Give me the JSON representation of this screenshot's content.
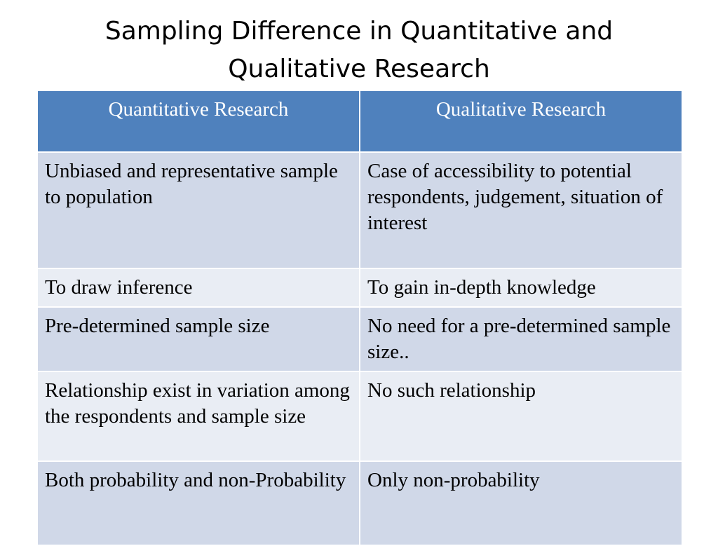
{
  "title": {
    "line1": "Sampling Difference in Quantitative and",
    "line2": "Qualitative Research"
  },
  "table": {
    "headers": [
      "Quantitative Research",
      "Qualitative Research"
    ],
    "rows": [
      [
        "Unbiased and representative sample to population",
        "Case of accessibility to potential respondents, judgement, situation of interest"
      ],
      [
        "To draw inference",
        "To gain in-depth knowledge"
      ],
      [
        "Pre-determined sample size",
        "No need for a pre-determined sample size.."
      ],
      [
        "Relationship exist in variation among the respondents and sample size",
        "No such relationship"
      ],
      [
        "Both  probability and non-Probability",
        "Only non-probability"
      ]
    ]
  },
  "colors": {
    "header_bg": "#4f81bd",
    "row_odd_bg": "#d0d8e8",
    "row_even_bg": "#e9edf4"
  }
}
